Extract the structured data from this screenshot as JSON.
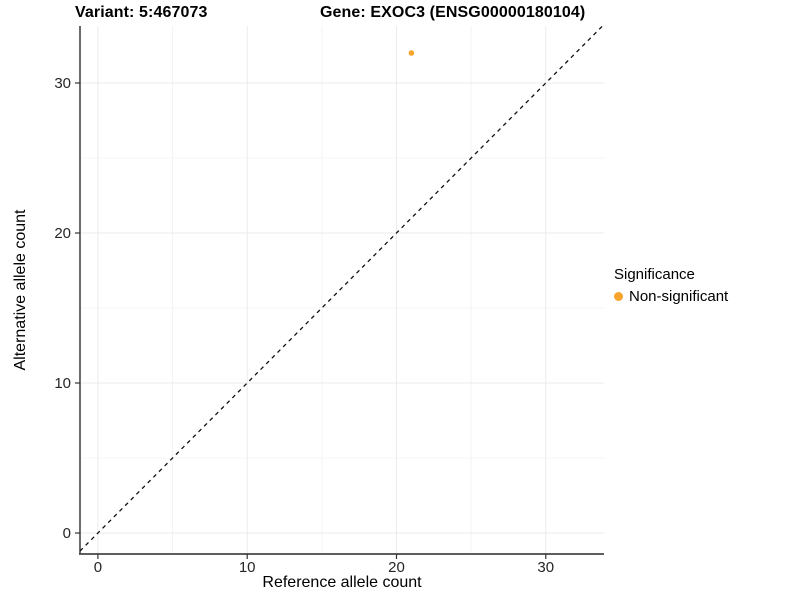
{
  "titles": {
    "variant": "Variant: 5:467073",
    "gene": "Gene: EXOC3 (ENSG00000180104)"
  },
  "chart_data": {
    "type": "scatter",
    "title": "Variant: 5:467073  Gene: EXOC3 (ENSG00000180104)",
    "xlabel": "Reference allele count",
    "ylabel": "Alternative allele count",
    "points": [
      {
        "x": 21,
        "y": 32,
        "series": "Non-significant"
      }
    ],
    "x_ticks": [
      0,
      10,
      20,
      30
    ],
    "y_ticks": [
      0,
      10,
      20,
      30
    ],
    "x_minor_ticks": [
      5,
      15,
      25
    ],
    "y_minor_ticks": [
      5,
      15,
      25
    ],
    "xlim": [
      -1.2,
      33.9
    ],
    "ylim": [
      -1.4,
      33.8
    ],
    "grid": true,
    "identity_line": {
      "equation": "y = x",
      "style": "dashed",
      "color": "#111111"
    },
    "point_color": "#F7A42D",
    "legend": {
      "title": "Significance",
      "position": "right",
      "entries": [
        {
          "label": "Non-significant",
          "color": "#F7A42D"
        }
      ]
    },
    "colors": {
      "axis": "#474747",
      "tick": "#333333",
      "tick_label": "#262626",
      "grid_major": "#ebebeb",
      "grid_minor": "#f4f4f4"
    }
  }
}
